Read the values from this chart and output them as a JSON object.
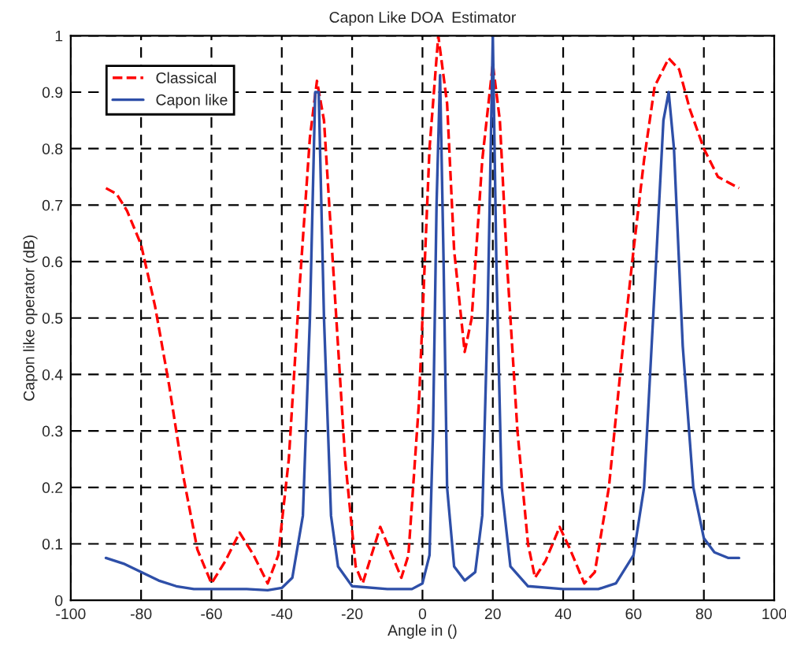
{
  "chart_data": {
    "type": "line",
    "title": "Capon Like DOA  Estimator",
    "xlabel": "Angle in ()",
    "ylabel": "Capon like operator (dB)",
    "xlim": [
      -100,
      100
    ],
    "xticks": [
      -100,
      -80,
      -60,
      -40,
      -20,
      0,
      20,
      40,
      60,
      80,
      100
    ],
    "ylim": [
      0,
      1
    ],
    "yticks": [
      0,
      0.1,
      0.2,
      0.3,
      0.4,
      0.5,
      0.6,
      0.7,
      0.8,
      0.9,
      1
    ],
    "grid": true,
    "legend": "top left",
    "series": [
      {
        "name": "Classical",
        "color": "#ff0000",
        "line_style": "dashed",
        "x": [
          -90,
          -87,
          -84,
          -80,
          -76,
          -72,
          -68,
          -64,
          -60,
          -56,
          -52,
          -48,
          -44,
          -41,
          -38,
          -35,
          -32,
          -30,
          -28,
          -25,
          -22,
          -19,
          -17,
          -14,
          -12,
          -10,
          -6,
          -4,
          -1,
          2,
          4.5,
          7,
          9,
          12,
          14,
          17,
          20,
          22,
          24,
          27,
          30,
          32,
          35,
          39,
          42,
          46,
          49,
          53,
          57,
          60,
          63,
          66,
          70,
          73,
          76,
          80,
          84,
          87,
          90
        ],
        "values": [
          0.73,
          0.72,
          0.69,
          0.63,
          0.52,
          0.38,
          0.22,
          0.09,
          0.03,
          0.07,
          0.12,
          0.08,
          0.03,
          0.08,
          0.25,
          0.55,
          0.82,
          0.92,
          0.85,
          0.55,
          0.25,
          0.06,
          0.03,
          0.09,
          0.13,
          0.1,
          0.04,
          0.08,
          0.35,
          0.8,
          1.0,
          0.88,
          0.62,
          0.44,
          0.5,
          0.78,
          0.95,
          0.85,
          0.6,
          0.3,
          0.1,
          0.04,
          0.07,
          0.13,
          0.09,
          0.03,
          0.05,
          0.2,
          0.45,
          0.62,
          0.78,
          0.91,
          0.96,
          0.94,
          0.87,
          0.8,
          0.75,
          0.74,
          0.73
        ]
      },
      {
        "name": "Capon like",
        "color": "#2e4fa8",
        "line_style": "solid",
        "x": [
          -90,
          -85,
          -80,
          -75,
          -70,
          -65,
          -60,
          -50,
          -44,
          -40,
          -37,
          -34,
          -32,
          -30.5,
          -29.5,
          -28,
          -26,
          -24,
          -20,
          -10,
          -3,
          0,
          2,
          3,
          4,
          5,
          6,
          7,
          9,
          12,
          15,
          17,
          18.5,
          20,
          21,
          22.5,
          25,
          30,
          40,
          50,
          55,
          60,
          63,
          66,
          68.5,
          70,
          71.5,
          74,
          77,
          80,
          83,
          87,
          90
        ],
        "values": [
          0.075,
          0.065,
          0.05,
          0.035,
          0.025,
          0.02,
          0.02,
          0.02,
          0.018,
          0.022,
          0.04,
          0.15,
          0.5,
          0.9,
          0.9,
          0.5,
          0.15,
          0.06,
          0.025,
          0.02,
          0.02,
          0.03,
          0.08,
          0.3,
          0.7,
          0.93,
          0.6,
          0.2,
          0.06,
          0.035,
          0.05,
          0.15,
          0.5,
          1.0,
          0.6,
          0.2,
          0.06,
          0.025,
          0.02,
          0.02,
          0.03,
          0.08,
          0.2,
          0.55,
          0.85,
          0.9,
          0.8,
          0.45,
          0.2,
          0.11,
          0.085,
          0.075,
          0.075
        ]
      }
    ]
  }
}
